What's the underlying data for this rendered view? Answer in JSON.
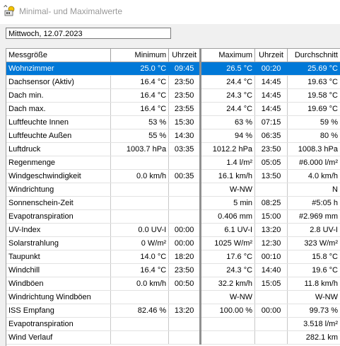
{
  "window": {
    "title": "Minimal- und Maximalwerte",
    "icon": "sun-cloud-icon"
  },
  "date_field": {
    "value": "Mittwoch, 12.07.2023"
  },
  "columns": [
    "Messgröße",
    "Minimum",
    "Uhrzeit",
    "Maximum",
    "Uhrzeit",
    "Durchschnitt"
  ],
  "rows": [
    {
      "name": "Wohnzimmer",
      "min": "25.0 °C",
      "min_time": "09:45",
      "max": "26.5 °C",
      "max_time": "00:20",
      "avg": "25.69 °C",
      "selected": true
    },
    {
      "name": "Dachsensor (Aktiv)",
      "min": "16.4 °C",
      "min_time": "23:50",
      "max": "24.4 °C",
      "max_time": "14:45",
      "avg": "19.63 °C"
    },
    {
      "name": "Dach min.",
      "min": "16.4 °C",
      "min_time": "23:50",
      "max": "24.3 °C",
      "max_time": "14:45",
      "avg": "19.58 °C"
    },
    {
      "name": "Dach max.",
      "min": "16.4 °C",
      "min_time": "23:55",
      "max": "24.4 °C",
      "max_time": "14:45",
      "avg": "19.69 °C"
    },
    {
      "name": "Luftfeuchte Innen",
      "min": "53 %",
      "min_time": "15:30",
      "max": "63 %",
      "max_time": "07:15",
      "avg": "59 %"
    },
    {
      "name": "Luftfeuchte Außen",
      "min": "55 %",
      "min_time": "14:30",
      "max": "94 %",
      "max_time": "06:35",
      "avg": "80 %"
    },
    {
      "name": "Luftdruck",
      "min": "1003.7 hPa",
      "min_time": "03:35",
      "max": "1012.2 hPa",
      "max_time": "23:50",
      "avg": "1008.3 hPa"
    },
    {
      "name": "Regenmenge",
      "min": "",
      "min_time": "",
      "max": "1.4 l/m²",
      "max_time": "05:05",
      "avg": "#6.000 l/m²"
    },
    {
      "name": "Windgeschwindigkeit",
      "min": "0.0 km/h",
      "min_time": "00:35",
      "max": "16.1 km/h",
      "max_time": "13:50",
      "avg": "4.0 km/h"
    },
    {
      "name": "Windrichtung",
      "min": "",
      "min_time": "",
      "max": "W-NW",
      "max_time": "",
      "avg": "N"
    },
    {
      "name": "Sonnenschein-Zeit",
      "min": "",
      "min_time": "",
      "max": "5 min",
      "max_time": "08:25",
      "avg": "#5:05 h"
    },
    {
      "name": "Evapotranspiration",
      "min": "",
      "min_time": "",
      "max": "0.406 mm",
      "max_time": "15:00",
      "avg": "#2.969 mm"
    },
    {
      "name": "UV-Index",
      "min": "0.0 UV-I",
      "min_time": "00:00",
      "max": "6.1 UV-I",
      "max_time": "13:20",
      "avg": "2.8 UV-I"
    },
    {
      "name": "Solarstrahlung",
      "min": "0 W/m²",
      "min_time": "00:00",
      "max": "1025 W/m²",
      "max_time": "12:30",
      "avg": "323 W/m²"
    },
    {
      "name": "Taupunkt",
      "min": "14.0 °C",
      "min_time": "18:20",
      "max": "17.6 °C",
      "max_time": "00:10",
      "avg": "15.8 °C"
    },
    {
      "name": "Windchill",
      "min": "16.4 °C",
      "min_time": "23:50",
      "max": "24.3 °C",
      "max_time": "14:40",
      "avg": "19.6 °C"
    },
    {
      "name": "Windböen",
      "min": "0.0 km/h",
      "min_time": "00:50",
      "max": "32.2 km/h",
      "max_time": "15:05",
      "avg": "11.8 km/h"
    },
    {
      "name": "Windrichtung Windböen",
      "min": "",
      "min_time": "",
      "max": "W-NW",
      "max_time": "",
      "avg": "W-NW"
    },
    {
      "name": "ISS Empfang",
      "min": "82.46 %",
      "min_time": "13:20",
      "max": "100.00 %",
      "max_time": "00:00",
      "avg": "99.73 %"
    },
    {
      "name": "Evapotranspiration",
      "min": "",
      "min_time": "",
      "max": "",
      "max_time": "",
      "avg": "3.518 l/m²"
    },
    {
      "name": "Wind Verlauf",
      "min": "",
      "min_time": "",
      "max": "",
      "max_time": "",
      "avg": "282.1 km"
    }
  ],
  "colors": {
    "selection": "#0078d7",
    "title_text": "#999999"
  }
}
